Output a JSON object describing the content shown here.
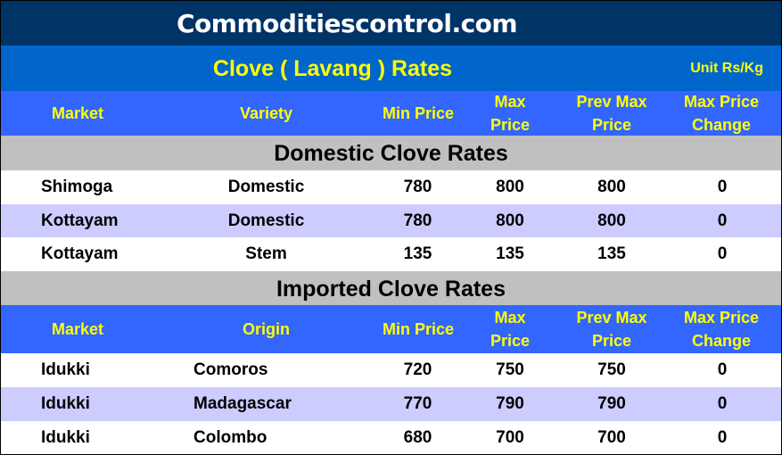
{
  "site": {
    "title": "Commoditiescontrol.com"
  },
  "header": {
    "title": "Clove ( Lavang ) Rates",
    "unit": "Unit Rs/Kg"
  },
  "colors": {
    "site_bg": "#003366",
    "title_bg": "#0066cc",
    "header_bg": "#3366ff",
    "header_text": "#ffff00",
    "section_bg": "#c0c0c0",
    "alt_row": "#ccccff"
  },
  "domestic": {
    "columns": [
      "Market",
      "Variety",
      "Min Price",
      "Max Price",
      "Prev Max Price",
      "Max Price Change"
    ],
    "section_title": "Domestic Clove Rates",
    "rows": [
      [
        "Shimoga",
        "Domestic",
        "780",
        "800",
        "800",
        "0"
      ],
      [
        "Kottayam",
        "Domestic",
        "780",
        "800",
        "800",
        "0"
      ],
      [
        "Kottayam",
        "Stem",
        "135",
        "135",
        "135",
        "0"
      ]
    ]
  },
  "imported": {
    "section_title": "Imported Clove Rates",
    "columns": [
      "Market",
      "Origin",
      "Min Price",
      "Max Price",
      "Prev Max Price",
      "Max Price Change"
    ],
    "rows": [
      [
        "Idukki",
        "Comoros",
        "720",
        "750",
        "750",
        "0"
      ],
      [
        "Idukki",
        "Madagascar",
        "770",
        "790",
        "790",
        "0"
      ],
      [
        "Idukki",
        "Colombo",
        "680",
        "700",
        "700",
        "0"
      ]
    ]
  }
}
